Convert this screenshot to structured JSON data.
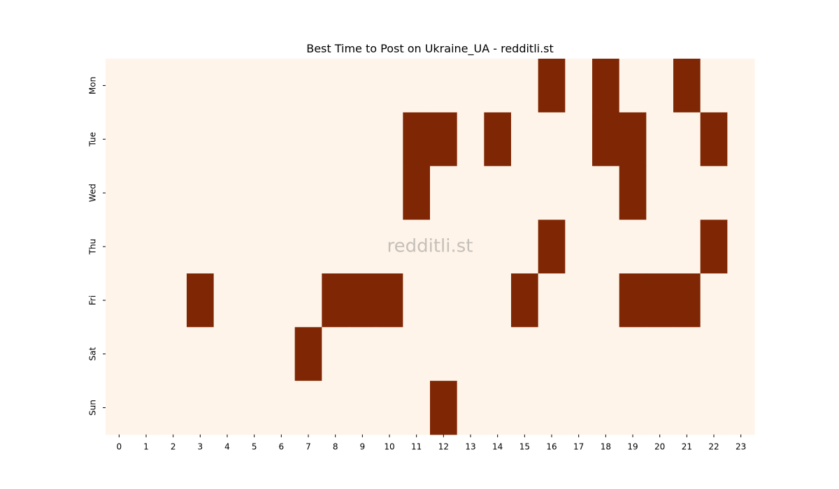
{
  "chart_data": {
    "type": "heatmap",
    "title": "Best Time to Post on Ukraine_UA - redditli.st",
    "watermark": "redditli.st",
    "x_categories": [
      0,
      1,
      2,
      3,
      4,
      5,
      6,
      7,
      8,
      9,
      10,
      11,
      12,
      13,
      14,
      15,
      16,
      17,
      18,
      19,
      20,
      21,
      22,
      23
    ],
    "y_categories": [
      "Mon",
      "Tue",
      "Wed",
      "Thu",
      "Fri",
      "Sat",
      "Sun"
    ],
    "colors": [
      "#fef4e9",
      "#7f2704"
    ],
    "values": [
      [
        0,
        0,
        0,
        0,
        0,
        0,
        0,
        0,
        0,
        0,
        0,
        0,
        0,
        0,
        0,
        0,
        1,
        0,
        1,
        0,
        0,
        1,
        0,
        0
      ],
      [
        0,
        0,
        0,
        0,
        0,
        0,
        0,
        0,
        0,
        0,
        0,
        1,
        1,
        0,
        1,
        0,
        0,
        0,
        1,
        1,
        0,
        0,
        1,
        0
      ],
      [
        0,
        0,
        0,
        0,
        0,
        0,
        0,
        0,
        0,
        0,
        0,
        1,
        0,
        0,
        0,
        0,
        0,
        0,
        0,
        1,
        0,
        0,
        0,
        0
      ],
      [
        0,
        0,
        0,
        0,
        0,
        0,
        0,
        0,
        0,
        0,
        0,
        0,
        0,
        0,
        0,
        0,
        1,
        0,
        0,
        0,
        0,
        0,
        1,
        0
      ],
      [
        0,
        0,
        0,
        1,
        0,
        0,
        0,
        0,
        1,
        1,
        1,
        0,
        0,
        0,
        0,
        1,
        0,
        0,
        0,
        1,
        1,
        1,
        0,
        0
      ],
      [
        0,
        0,
        0,
        0,
        0,
        0,
        0,
        1,
        0,
        0,
        0,
        0,
        0,
        0,
        0,
        0,
        0,
        0,
        0,
        0,
        0,
        0,
        0,
        0
      ],
      [
        0,
        0,
        0,
        0,
        0,
        0,
        0,
        0,
        0,
        0,
        0,
        0,
        1,
        0,
        0,
        0,
        0,
        0,
        0,
        0,
        0,
        0,
        0,
        0
      ]
    ]
  }
}
